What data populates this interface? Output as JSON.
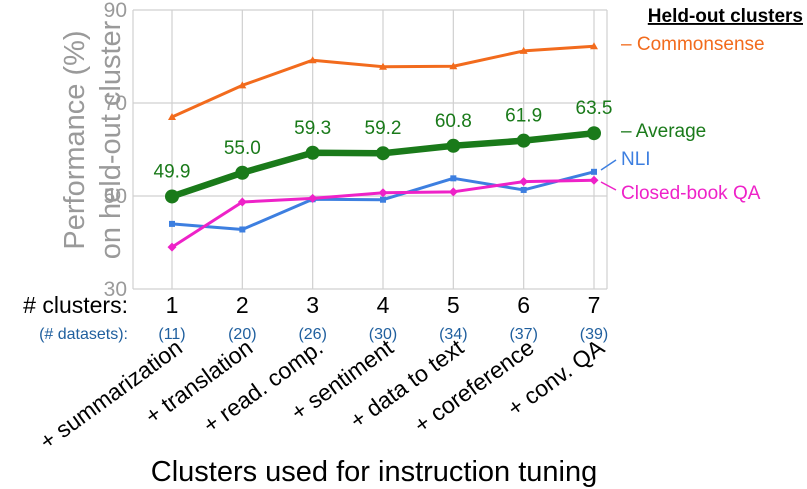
{
  "chart_data": {
    "type": "line",
    "title": "",
    "xlabel": "Clusters used for instruction tuning",
    "ylabel_line1": "Performance (%)",
    "ylabel_line2": "on held-out cluster",
    "ylim": [
      30,
      90
    ],
    "yticks": [
      "30",
      "50",
      "70",
      "90"
    ],
    "ytick_values": [
      30,
      50,
      70,
      90
    ],
    "grid": true,
    "clusters_label": "# clusters:",
    "datasets_label": "(# datasets):",
    "x": [
      1,
      2,
      3,
      4,
      5,
      6,
      7
    ],
    "x_tick_labels": [
      "1",
      "2",
      "3",
      "4",
      "5",
      "6",
      "7"
    ],
    "dataset_counts": [
      "(11)",
      "(20)",
      "(26)",
      "(30)",
      "(34)",
      "(37)",
      "(39)"
    ],
    "categories": [
      "+ summarization",
      "+ translation",
      "+ read. comp.",
      "+ sentiment",
      "+ data to text",
      "+ coreference",
      "+ conv. QA"
    ],
    "legend_title": "Held-out clusters",
    "series": [
      {
        "name": "Commonsense",
        "label_text": "– Commonsense",
        "color": "#f26b1d",
        "values": [
          67.0,
          73.8,
          79.2,
          77.8,
          77.9,
          81.2,
          82.2
        ]
      },
      {
        "name": "Average",
        "label_text": "– Average",
        "color": "#1a7a1a",
        "values": [
          49.9,
          55.0,
          59.3,
          59.2,
          60.8,
          61.9,
          63.5
        ],
        "data_labels": [
          "49.9",
          "55.0",
          "59.3",
          "59.2",
          "60.8",
          "61.9",
          "63.5"
        ]
      },
      {
        "name": "NLI",
        "label_text": "NLI",
        "color": "#3d7fe0",
        "values": [
          44.0,
          42.8,
          49.3,
          49.2,
          53.8,
          51.3,
          55.2
        ]
      },
      {
        "name": "Closed-book QA",
        "label_text": "Closed-book QA",
        "color": "#ee22c8",
        "values": [
          39.0,
          48.7,
          49.5,
          50.7,
          50.9,
          53.1,
          53.4
        ]
      }
    ]
  }
}
